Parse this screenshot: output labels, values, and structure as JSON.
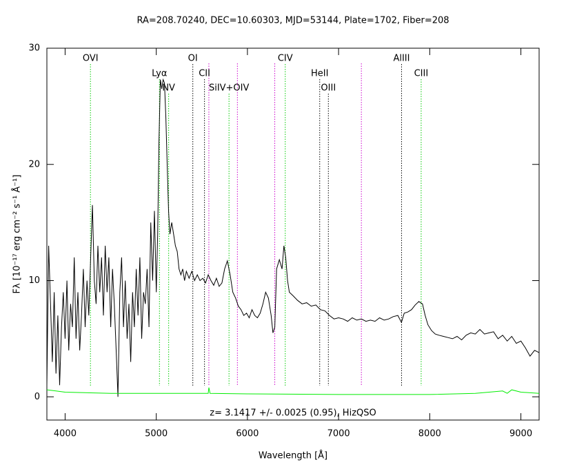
{
  "chart_data": {
    "type": "line",
    "title": "RA=208.70240, DEC=10.60303, MJD=53144, Plate=1702, Fiber=208",
    "xlabel": "Wavelength [Å]",
    "ylabel": "Fλ [10⁻¹⁷ erg cm⁻² s⁻¹ Å⁻¹]",
    "annotation": "z= 3.1417 +/- 0.0025 (0.95), HizQSO",
    "xlim": [
      3800,
      9200
    ],
    "ylim": [
      -2,
      30
    ],
    "xticks": [
      4000,
      5000,
      6000,
      7000,
      8000,
      9000
    ],
    "yticks": [
      0,
      10,
      20,
      30
    ],
    "series": [
      {
        "color": "#000000",
        "x": [
          3800,
          3820,
          3840,
          3860,
          3880,
          3900,
          3920,
          3940,
          3960,
          3980,
          4000,
          4020,
          4040,
          4060,
          4080,
          4100,
          4120,
          4140,
          4160,
          4180,
          4200,
          4220,
          4240,
          4260,
          4280,
          4300,
          4320,
          4340,
          4360,
          4380,
          4400,
          4420,
          4440,
          4460,
          4480,
          4500,
          4520,
          4540,
          4560,
          4580,
          4600,
          4620,
          4640,
          4660,
          4680,
          4700,
          4720,
          4740,
          4760,
          4780,
          4800,
          4820,
          4840,
          4860,
          4880,
          4900,
          4920,
          4940,
          4960,
          4980,
          5000,
          5015,
          5030,
          5045,
          5060,
          5075,
          5090,
          5105,
          5120,
          5135,
          5150,
          5170,
          5190,
          5210,
          5230,
          5250,
          5270,
          5290,
          5310,
          5330,
          5360,
          5390,
          5420,
          5450,
          5480,
          5510,
          5540,
          5570,
          5600,
          5630,
          5660,
          5690,
          5720,
          5750,
          5780,
          5810,
          5840,
          5870,
          5900,
          5930,
          5960,
          5990,
          6020,
          6050,
          6080,
          6110,
          6140,
          6170,
          6200,
          6230,
          6260,
          6280,
          6300,
          6320,
          6350,
          6380,
          6400,
          6420,
          6440,
          6460,
          6500,
          6550,
          6600,
          6650,
          6700,
          6750,
          6800,
          6850,
          6900,
          6950,
          7000,
          7050,
          7100,
          7150,
          7200,
          7250,
          7300,
          7350,
          7400,
          7450,
          7500,
          7550,
          7600,
          7650,
          7690,
          7720,
          7760,
          7800,
          7840,
          7880,
          7920,
          7950,
          7980,
          8020,
          8060,
          8100,
          8150,
          8200,
          8250,
          8300,
          8350,
          8400,
          8450,
          8500,
          8550,
          8600,
          8650,
          8700,
          8750,
          8800,
          8850,
          8900,
          8950,
          9000,
          9050,
          9100,
          9150,
          9200
        ],
        "values": [
          1,
          13,
          8,
          3,
          9,
          2,
          7,
          1,
          6,
          9,
          5,
          10,
          4,
          8,
          6,
          12,
          5,
          9,
          4,
          7,
          11,
          6,
          10,
          7,
          12,
          16.5,
          10,
          8,
          13,
          9,
          12,
          7,
          13,
          9,
          12,
          6,
          11,
          8,
          4,
          0,
          9,
          12,
          6,
          10,
          5,
          8,
          3,
          9,
          6,
          11,
          7,
          12,
          5,
          9,
          8,
          11,
          6,
          15,
          10,
          16,
          9,
          14,
          22,
          27.3,
          26.5,
          27.3,
          27,
          24,
          20,
          16,
          14,
          15,
          14,
          13,
          12.5,
          11,
          10.5,
          11,
          10,
          10.8,
          10.2,
          10.8,
          10,
          10.5,
          10,
          10.2,
          9.8,
          10.5,
          10,
          9.6,
          10.2,
          9.5,
          9.8,
          11,
          11.7,
          10.5,
          9,
          8.5,
          7.8,
          7.5,
          7,
          7.2,
          6.8,
          7.5,
          7,
          6.8,
          7.2,
          8,
          9,
          8.5,
          7,
          5.5,
          6,
          11,
          11.8,
          11,
          13,
          12,
          10,
          9,
          8.7,
          8.3,
          8,
          8.1,
          7.8,
          7.9,
          7.5,
          7.4,
          7,
          6.7,
          6.8,
          6.7,
          6.5,
          6.8,
          6.6,
          6.7,
          6.5,
          6.6,
          6.5,
          6.8,
          6.6,
          6.7,
          6.9,
          7,
          6.4,
          7.2,
          7.3,
          7.5,
          7.9,
          8.2,
          8,
          7,
          6.2,
          5.7,
          5.4,
          5.3,
          5.2,
          5.1,
          5,
          5.2,
          4.9,
          5.3,
          5.5,
          5.4,
          5.8,
          5.4,
          5.5,
          5.6,
          5,
          5.3,
          4.8,
          5.2,
          4.6,
          4.8,
          4.2,
          3.5,
          4,
          3.8
        ]
      },
      {
        "color": "#00ee00",
        "x": [
          3800,
          3900,
          4000,
          4500,
          5000,
          5570,
          5577,
          5590,
          6000,
          7000,
          8000,
          8500,
          8800,
          8850,
          8900,
          9000,
          9200
        ],
        "values": [
          0.6,
          0.5,
          0.4,
          0.3,
          0.3,
          0.3,
          0.8,
          0.3,
          0.25,
          0.2,
          0.2,
          0.3,
          0.5,
          0.3,
          0.6,
          0.4,
          0.3
        ]
      }
    ],
    "lines": [
      {
        "label": "OVI",
        "wavelength": 4278,
        "color": "#00cc00"
      },
      {
        "label": "Lyα",
        "wavelength": 5035,
        "color": "#00cc00"
      },
      {
        "label": "NV",
        "wavelength": 5136,
        "color": "#00cc00"
      },
      {
        "label": "OI",
        "wavelength": 5401,
        "color": "#000000"
      },
      {
        "label": "CII",
        "wavelength": 5529,
        "color": "#000000"
      },
      {
        "label": "SiIV+OIV",
        "wavelength": 5798,
        "color": "#00cc00"
      },
      {
        "label": "CIV",
        "wavelength": 6415,
        "color": "#00cc00"
      },
      {
        "label": "HeII",
        "wavelength": 6793,
        "color": "#000000"
      },
      {
        "label": "OIII",
        "wavelength": 6888,
        "color": "#000000"
      },
      {
        "label": "AlIII",
        "wavelength": 7691,
        "color": "#000000"
      },
      {
        "label": "CIII",
        "wavelength": 7906,
        "color": "#00cc00"
      }
    ],
    "sky_lines": [
      5577,
      5890,
      6300,
      7250
    ],
    "sky_color": "#cc00cc"
  }
}
